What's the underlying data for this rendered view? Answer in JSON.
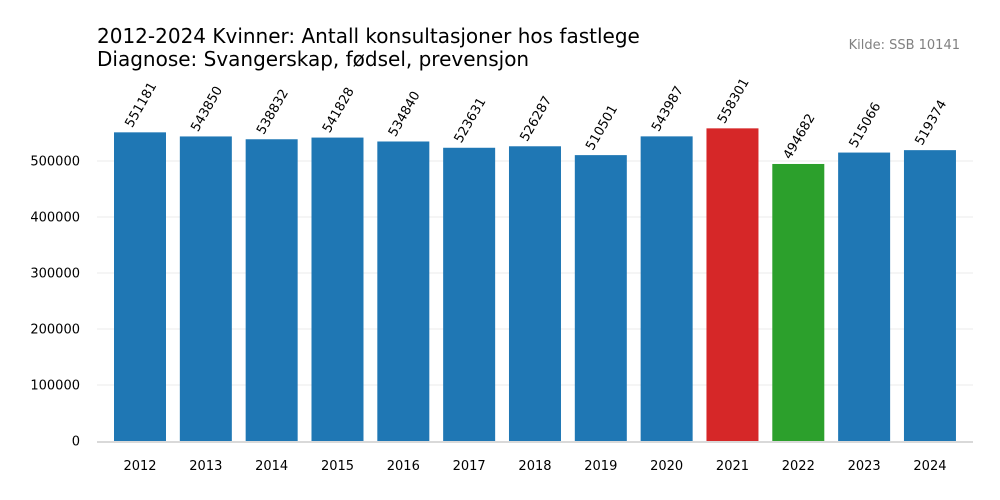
{
  "chart_data": {
    "type": "bar",
    "title": "2012-2024 Kvinner: Antall konsultasjoner hos fastlege",
    "subtitle": "Diagnose: Svangerskap, fødsel, prevensjon",
    "source": "Kilde: SSB 10141",
    "xlabel": "",
    "ylabel": "",
    "categories": [
      "2012",
      "2013",
      "2014",
      "2015",
      "2016",
      "2017",
      "2018",
      "2019",
      "2020",
      "2021",
      "2022",
      "2023",
      "2024"
    ],
    "values": [
      551181,
      543850,
      538832,
      541828,
      534840,
      523631,
      526287,
      510501,
      543987,
      558301,
      494682,
      515066,
      519374
    ],
    "colors": [
      "#1f77b4",
      "#1f77b4",
      "#1f77b4",
      "#1f77b4",
      "#1f77b4",
      "#1f77b4",
      "#1f77b4",
      "#1f77b4",
      "#1f77b4",
      "#d62728",
      "#2ca02c",
      "#1f77b4",
      "#1f77b4"
    ],
    "highlight": {
      "max": "#d62728",
      "min": "#2ca02c",
      "default": "#1f77b4"
    },
    "yticks": [
      0,
      100000,
      200000,
      300000,
      400000,
      500000
    ],
    "ylim": [
      0,
      600000
    ],
    "grid": true,
    "legend": "none"
  }
}
